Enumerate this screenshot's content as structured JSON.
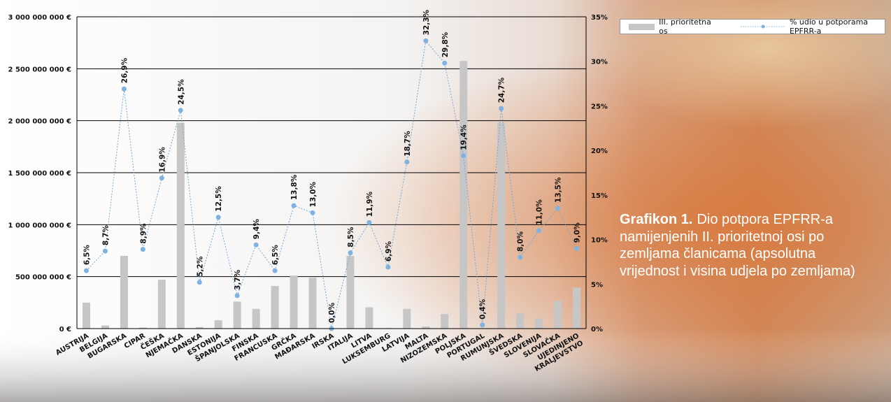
{
  "caption": {
    "title": "Grafikon 1.",
    "text": "Dio potpora EPFRR-a namijenjenih II. prioritetnoj osi po zemljama članicama (apsolutna vrijednost i visina udjela po zemljama)"
  },
  "legend": {
    "bar_label": "III. prioritetna os",
    "line_label": "% udio u potporama EPFRR-a"
  },
  "colors": {
    "bar": "#c6c6c6",
    "line": "#6fa8dc",
    "point": "#7fb2e0",
    "grid": "#000000",
    "caption_text": "#ffffff"
  },
  "chart_data": {
    "type": "bar",
    "categories": [
      "AUSTRIJA",
      "BELGIJA",
      "BUGARSKA",
      "CIPAR",
      "ČEŠKA",
      "NJEMAČKA",
      "DANSKA",
      "ESTONIJA",
      "ŠPANJOLSKA",
      "FINSKA",
      "FRANCUSKA",
      "GRČKA",
      "MAĐARSKA",
      "IRSKA",
      "ITALIJA",
      "LITVA",
      "LUKSEMBURG",
      "LATVIJA",
      "MALTA",
      "NIZOZEMSKA",
      "POLJSKA",
      "PORTUGAL",
      "RUMUNJSKA",
      "ŠVEDSKA",
      "SLOVENIJA",
      "SLOVAČKA",
      "UJEDINJENO KRALJEVSTVO"
    ],
    "series": [
      {
        "name": "III. prioritetna os",
        "type": "bar",
        "axis": "left",
        "values": [
          250000000,
          30000000,
          700000000,
          10000000,
          470000000,
          1980000000,
          15000000,
          80000000,
          260000000,
          190000000,
          410000000,
          510000000,
          490000000,
          0,
          700000000,
          205000000,
          5000000,
          190000000,
          20000000,
          140000000,
          2575000000,
          0,
          1980000000,
          145000000,
          95000000,
          265000000,
          395000000
        ]
      },
      {
        "name": "% udio u potporama EPFRR-a",
        "type": "line",
        "axis": "right",
        "values": [
          6.5,
          8.7,
          26.9,
          8.9,
          16.9,
          24.5,
          5.2,
          12.5,
          3.7,
          9.4,
          6.5,
          13.8,
          13.0,
          0.0,
          8.5,
          11.9,
          6.9,
          18.7,
          32.3,
          29.8,
          19.4,
          0.4,
          24.7,
          8.0,
          11.0,
          13.5,
          9.0
        ],
        "labels": [
          "6,5%",
          "8,7%",
          "26,9%",
          "8,9%",
          "16,9%",
          "24,5%",
          "5,2%",
          "12,5%",
          "3,7%",
          "9,4%",
          "6,5%",
          "13,8%",
          "13,0%",
          "0,0%",
          "8,5%",
          "11,9%",
          "6,9%",
          "18,7%",
          "32,3%",
          "29,8%",
          "19,4%",
          "0,4%",
          "24,7%",
          "8,0%",
          "11,0%",
          "13,5%",
          "9,0%"
        ]
      }
    ],
    "ylim_left": [
      0,
      3000000000
    ],
    "ylim_right": [
      0,
      35
    ],
    "yticks_left": [
      "0 €",
      "500 000 000 €",
      "1 000 000 000 €",
      "1 500 000 000 €",
      "2 000 000 000 €",
      "2 500 000 000 €",
      "3 000 000 000 €"
    ],
    "yticks_right": [
      "0%",
      "5%",
      "10%",
      "15%",
      "20%",
      "25%",
      "30%",
      "35%"
    ],
    "grid": true,
    "legend_position": "top-right"
  }
}
